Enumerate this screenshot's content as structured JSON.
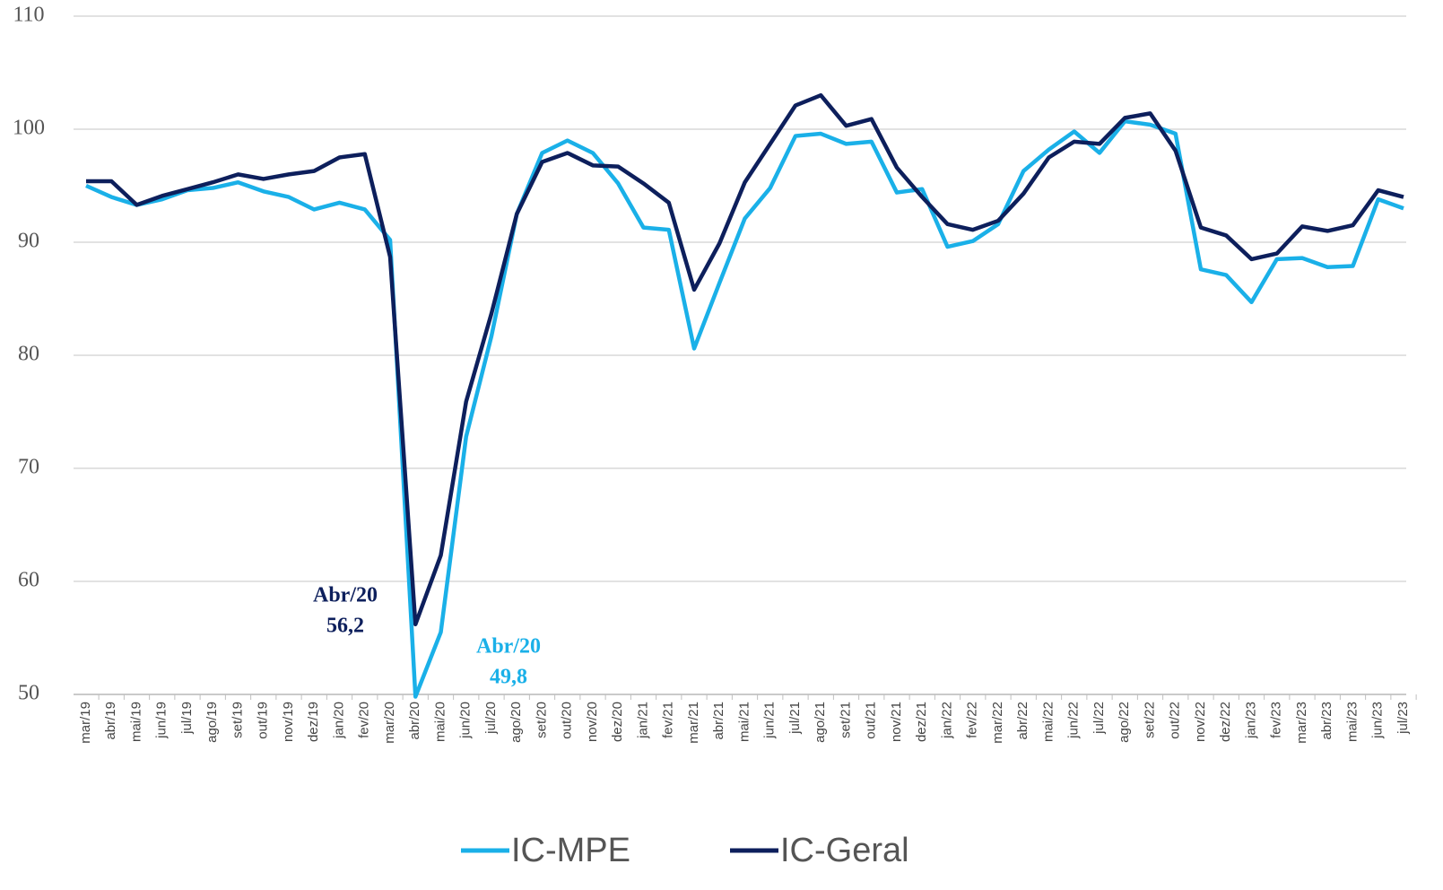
{
  "chart_data": {
    "type": "line",
    "categories": [
      "mar/19",
      "abr/19",
      "mai/19",
      "jun/19",
      "jul/19",
      "ago/19",
      "set/19",
      "out/19",
      "nov/19",
      "dez/19",
      "jan/20",
      "fev/20",
      "mar/20",
      "abr/20",
      "mai/20",
      "jun/20",
      "jul/20",
      "ago/20",
      "set/20",
      "out/20",
      "nov/20",
      "dez/20",
      "jan/21",
      "fev/21",
      "mar/21",
      "abr/21",
      "mai/21",
      "jun/21",
      "jul/21",
      "ago/21",
      "set/21",
      "out/21",
      "nov/21",
      "dez/21",
      "jan/22",
      "fev/22",
      "mar/22",
      "abr/22",
      "mai/22",
      "jun/22",
      "jul/22",
      "ago/22",
      "set/22",
      "out/22",
      "nov/22",
      "dez/22",
      "jan/23",
      "fev/23",
      "mar/23",
      "abr/23",
      "mai/23",
      "jun/23",
      "jul/23"
    ],
    "series": [
      {
        "name": "IC-MPE",
        "color": "#1ab0e8",
        "values": [
          95.0,
          94.0,
          93.3,
          93.8,
          94.6,
          94.8,
          95.3,
          94.5,
          94.0,
          92.9,
          93.5,
          92.9,
          90.2,
          49.8,
          55.5,
          72.8,
          81.7,
          92.5,
          97.9,
          99.0,
          97.9,
          95.2,
          91.3,
          91.1,
          80.6,
          86.4,
          92.1,
          94.8,
          99.4,
          99.6,
          98.7,
          98.9,
          94.4,
          94.7,
          89.6,
          90.1,
          91.6,
          96.3,
          98.2,
          99.8,
          97.9,
          100.7,
          100.4,
          99.6,
          87.6,
          87.1,
          84.7,
          88.5,
          88.6,
          87.8,
          87.9,
          93.8,
          93.0
        ]
      },
      {
        "name": "IC-Geral",
        "color": "#0d1f5c",
        "values": [
          95.4,
          95.4,
          93.3,
          94.1,
          94.7,
          95.3,
          96.0,
          95.6,
          96.0,
          96.3,
          97.5,
          97.8,
          88.7,
          56.2,
          62.3,
          75.9,
          83.7,
          92.5,
          97.1,
          97.9,
          96.8,
          96.7,
          95.2,
          93.5,
          85.8,
          89.9,
          95.3,
          98.7,
          102.1,
          103.0,
          100.3,
          100.9,
          96.6,
          94.0,
          91.6,
          91.1,
          91.9,
          94.3,
          97.5,
          98.9,
          98.7,
          101.0,
          101.4,
          98.1,
          91.3,
          90.6,
          88.5,
          89.0,
          91.4,
          91.0,
          91.5,
          94.6,
          94.0
        ]
      }
    ],
    "ylim": [
      50,
      110
    ],
    "yticks": [
      50,
      60,
      70,
      80,
      90,
      100,
      110
    ],
    "grid": true,
    "legend": "bottom",
    "annotations": [
      {
        "lines": [
          "Abr/20",
          "56,2"
        ],
        "color": "#0d1f5c"
      },
      {
        "lines": [
          "Abr/20",
          "49,8"
        ],
        "color": "#1ab0e8"
      }
    ]
  }
}
